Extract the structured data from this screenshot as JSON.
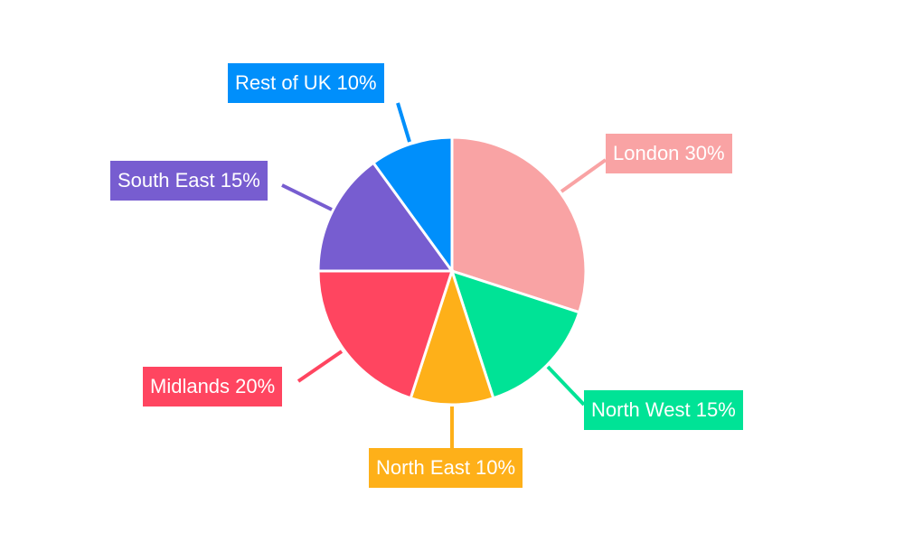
{
  "chart_data": {
    "type": "pie",
    "categories": [
      "London",
      "North West",
      "North East",
      "Midlands",
      "South East",
      "Rest of UK"
    ],
    "values": [
      30,
      15,
      10,
      20,
      15,
      10
    ],
    "labels": [
      "London 30%",
      "North West 15%",
      "North East 10%",
      "Midlands 20%",
      "South East 15%",
      "Rest of UK 10%"
    ],
    "colors": [
      "#F9A3A4",
      "#00E396",
      "#FEB019",
      "#FF4560",
      "#775DD0",
      "#008FFB"
    ],
    "start_angle": "top, clockwise",
    "legend": "none"
  }
}
